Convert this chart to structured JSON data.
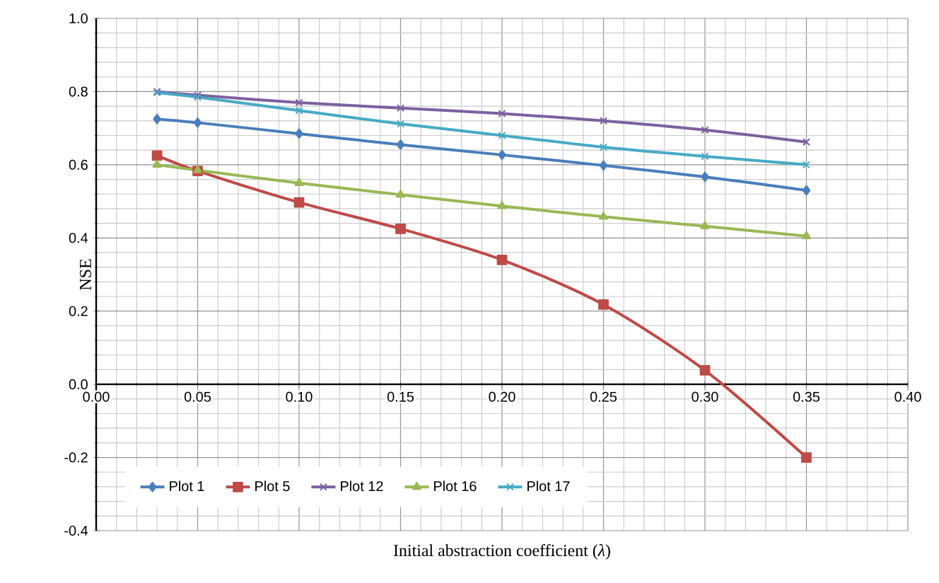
{
  "chart_data": {
    "type": "line",
    "xlabel": "Initial abstraction coefficient (*λ*)",
    "ylabel": "NSE",
    "x": [
      0.03,
      0.05,
      0.1,
      0.15,
      0.2,
      0.25,
      0.3,
      0.35
    ],
    "series": [
      {
        "name": "Plot 1",
        "color": "#4a7ebb",
        "marker": "diamond",
        "values": [
          0.725,
          0.715,
          0.685,
          0.655,
          0.627,
          0.598,
          0.567,
          0.53
        ]
      },
      {
        "name": "Plot 5",
        "color": "#be4b48",
        "marker": "square",
        "values": [
          0.625,
          0.583,
          0.497,
          0.425,
          0.34,
          0.218,
          0.038,
          -0.2
        ]
      },
      {
        "name": "Plot 12",
        "color": "#7d60a0",
        "marker": "cross",
        "values": [
          0.8,
          0.79,
          0.77,
          0.755,
          0.74,
          0.72,
          0.695,
          0.662
        ]
      },
      {
        "name": "Plot 16",
        "color": "#98b954",
        "marker": "triangle",
        "values": [
          0.6,
          0.585,
          0.55,
          0.518,
          0.487,
          0.458,
          0.432,
          0.405
        ]
      },
      {
        "name": "Plot 17",
        "color": "#46aac5",
        "marker": "cross",
        "values": [
          0.797,
          0.785,
          0.748,
          0.712,
          0.68,
          0.648,
          0.623,
          0.6
        ]
      }
    ],
    "xlim": [
      0.0,
      0.4
    ],
    "ylim": [
      -0.4,
      1.0
    ],
    "xticks": [
      {
        "value": 0.0,
        "label": "0.00"
      },
      {
        "value": 0.05,
        "label": "0.05"
      },
      {
        "value": 0.1,
        "label": "0.10"
      },
      {
        "value": 0.15,
        "label": "0.15"
      },
      {
        "value": 0.2,
        "label": "0.20"
      },
      {
        "value": 0.25,
        "label": "0.25"
      },
      {
        "value": 0.3,
        "label": "0.30"
      },
      {
        "value": 0.35,
        "label": "0.35"
      },
      {
        "value": 0.4,
        "label": "0.40"
      }
    ],
    "yticks": [
      {
        "value": -0.4,
        "label": "-0.4"
      },
      {
        "value": -0.2,
        "label": "-0.2"
      },
      {
        "value": 0.0,
        "label": "0.0"
      },
      {
        "value": 0.2,
        "label": "0.2"
      },
      {
        "value": 0.4,
        "label": "0.4"
      },
      {
        "value": 0.6,
        "label": "0.6"
      },
      {
        "value": 0.8,
        "label": "0.8"
      },
      {
        "value": 1.0,
        "label": "1.0"
      }
    ],
    "grid": true,
    "legend": "bottom left",
    "line_style": "solid"
  }
}
